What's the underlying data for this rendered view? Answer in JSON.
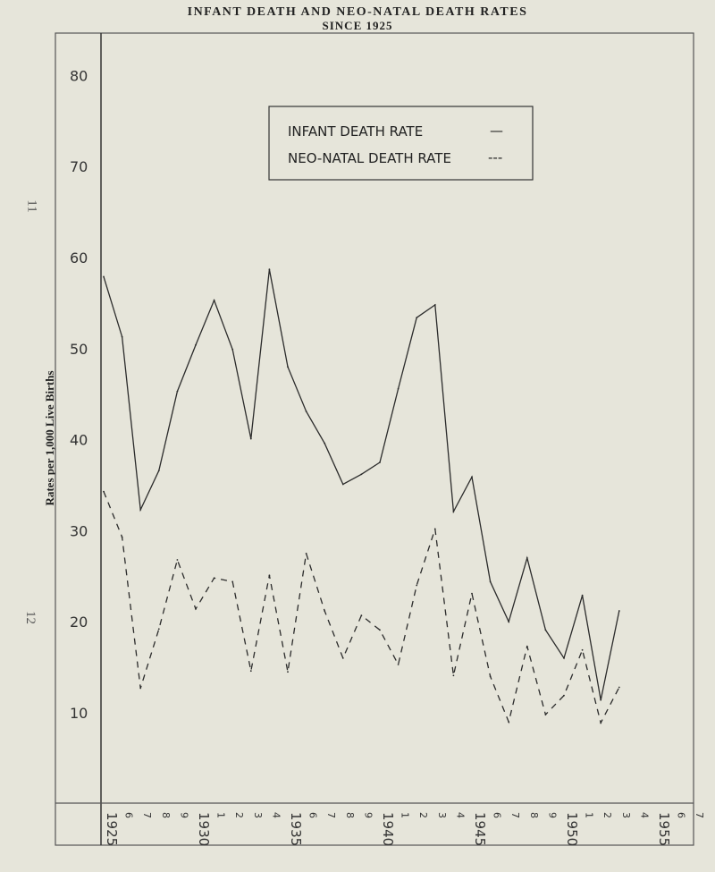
{
  "page": {
    "side_numbers": [
      "11",
      "12"
    ]
  },
  "chart_data": {
    "type": "line",
    "title": "INFANT DEATH AND NEO-NATAL DEATH RATES",
    "subtitle": "SINCE 1925",
    "ylabel": "Rates per 1,000 Live Births",
    "xlabel": "",
    "ylim": [
      0,
      85
    ],
    "yticks": [
      10,
      20,
      30,
      40,
      50,
      60,
      70,
      80
    ],
    "xlim": [
      1925,
      1957
    ],
    "x_tick_labels": [
      {
        "year": 1925,
        "label": "1925",
        "major": true
      },
      {
        "year": 1926,
        "label": "6",
        "major": false
      },
      {
        "year": 1927,
        "label": "7",
        "major": false
      },
      {
        "year": 1928,
        "label": "8",
        "major": false
      },
      {
        "year": 1929,
        "label": "9",
        "major": false
      },
      {
        "year": 1930,
        "label": "1930",
        "major": true
      },
      {
        "year": 1931,
        "label": "1",
        "major": false
      },
      {
        "year": 1932,
        "label": "2",
        "major": false
      },
      {
        "year": 1933,
        "label": "3",
        "major": false
      },
      {
        "year": 1934,
        "label": "4",
        "major": false
      },
      {
        "year": 1935,
        "label": "1935",
        "major": true
      },
      {
        "year": 1936,
        "label": "6",
        "major": false
      },
      {
        "year": 1937,
        "label": "7",
        "major": false
      },
      {
        "year": 1938,
        "label": "8",
        "major": false
      },
      {
        "year": 1939,
        "label": "9",
        "major": false
      },
      {
        "year": 1940,
        "label": "1940",
        "major": true
      },
      {
        "year": 1941,
        "label": "1",
        "major": false
      },
      {
        "year": 1942,
        "label": "2",
        "major": false
      },
      {
        "year": 1943,
        "label": "3",
        "major": false
      },
      {
        "year": 1944,
        "label": "4",
        "major": false
      },
      {
        "year": 1945,
        "label": "1945",
        "major": true
      },
      {
        "year": 1946,
        "label": "6",
        "major": false
      },
      {
        "year": 1947,
        "label": "7",
        "major": false
      },
      {
        "year": 1948,
        "label": "8",
        "major": false
      },
      {
        "year": 1949,
        "label": "9",
        "major": false
      },
      {
        "year": 1950,
        "label": "1950",
        "major": true
      },
      {
        "year": 1951,
        "label": "1",
        "major": false
      },
      {
        "year": 1952,
        "label": "2",
        "major": false
      },
      {
        "year": 1953,
        "label": "3",
        "major": false
      },
      {
        "year": 1954,
        "label": "4",
        "major": false
      },
      {
        "year": 1955,
        "label": "1955",
        "major": true
      },
      {
        "year": 1956,
        "label": "6",
        "major": false
      },
      {
        "year": 1957,
        "label": "7",
        "major": false
      }
    ],
    "grid": false,
    "legend_position": "top-center",
    "series": [
      {
        "name": "INFANT DEATH RATE",
        "legend_key": "—",
        "style": "solid",
        "color": "#2b2b2b",
        "x": [
          1925,
          1926,
          1927,
          1928,
          1929,
          1930,
          1931,
          1932,
          1933,
          1934,
          1935,
          1936,
          1937,
          1938,
          1939,
          1940,
          1941,
          1942,
          1943,
          1944,
          1945,
          1946,
          1947,
          1948,
          1949,
          1950,
          1951,
          1952,
          1953
        ],
        "values": [
          57.9,
          51.3,
          32.3,
          36.6,
          45.3,
          50.4,
          55.3,
          49.9,
          40.1,
          58.7,
          48.0,
          43.1,
          39.6,
          35.1,
          36.2,
          37.5,
          45.6,
          53.4,
          54.8,
          32.1,
          35.9,
          24.4,
          20.0,
          27.0,
          19.1,
          16.0,
          22.9,
          11.4,
          21.2
        ]
      },
      {
        "name": "NEO-NATAL DEATH RATE",
        "legend_key": "---",
        "style": "dashed",
        "color": "#2b2b2b",
        "x": [
          1925,
          1926,
          1927,
          1928,
          1929,
          1930,
          1931,
          1932,
          1933,
          1934,
          1935,
          1936,
          1937,
          1938,
          1939,
          1940,
          1941,
          1942,
          1943,
          1944,
          1945,
          1946,
          1947,
          1948,
          1949,
          1950,
          1951,
          1952,
          1953
        ],
        "values": [
          34.3,
          29.3,
          12.7,
          19.2,
          26.8,
          21.4,
          24.8,
          24.4,
          14.6,
          25.1,
          14.5,
          27.5,
          21.2,
          16.0,
          20.7,
          19.1,
          15.3,
          24.0,
          30.2,
          14.1,
          23.1,
          14.0,
          9.0,
          17.3,
          9.8,
          11.9,
          16.9,
          8.9,
          12.8
        ]
      }
    ]
  }
}
